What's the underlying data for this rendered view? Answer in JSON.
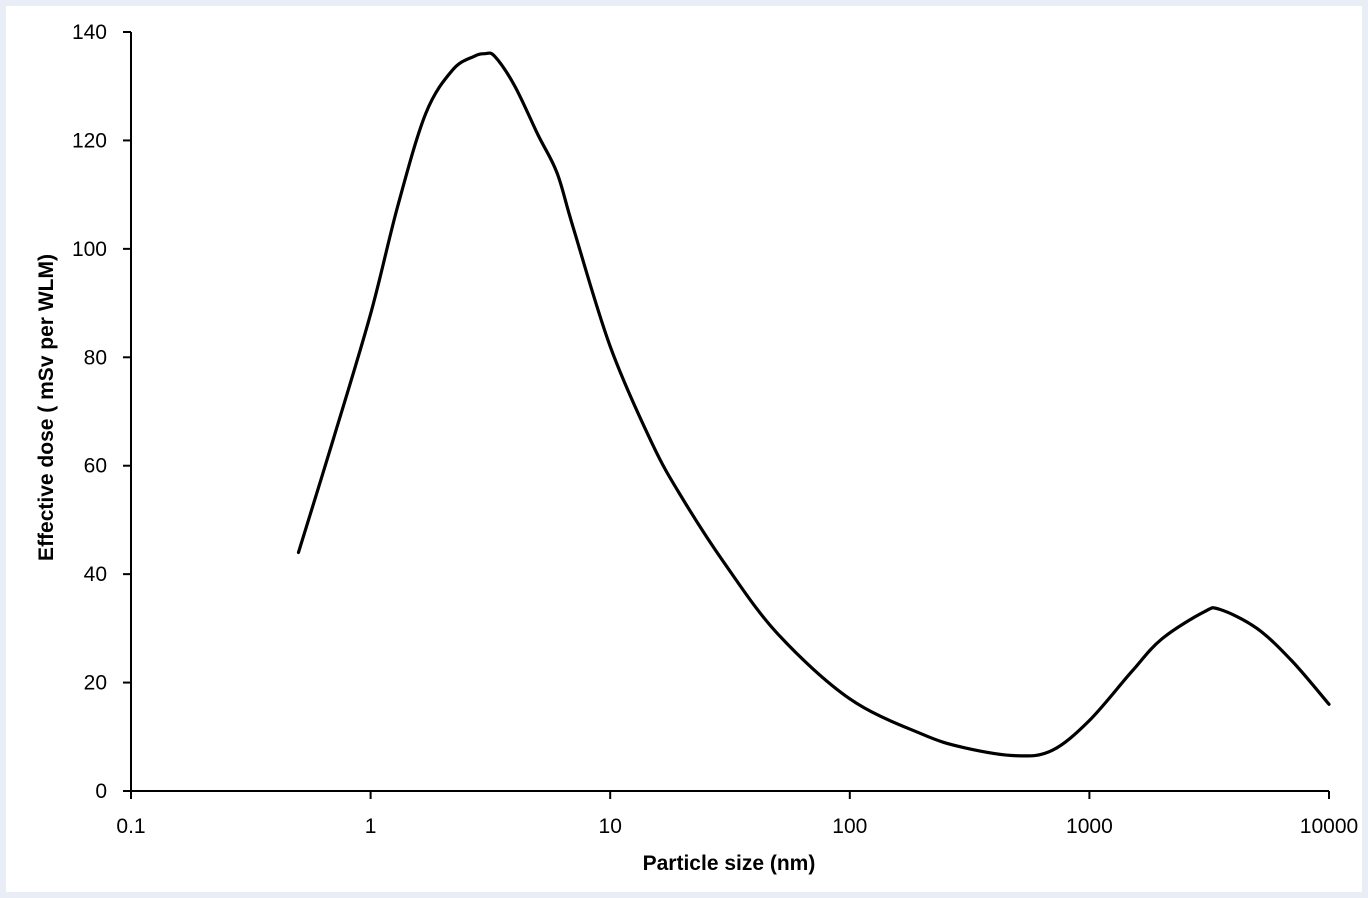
{
  "chart_data": {
    "type": "line",
    "title": "",
    "xlabel": "Particle size  (nm)",
    "ylabel": "Effective dose ( mSv per WLM)",
    "x_scale": "log",
    "xlim": [
      0.1,
      10000
    ],
    "ylim": [
      0,
      140
    ],
    "x_ticks": [
      "0.1",
      "1",
      "10",
      "100",
      "1000",
      "10000"
    ],
    "y_ticks": [
      "0",
      "20",
      "40",
      "60",
      "80",
      "100",
      "120",
      "140"
    ],
    "grid": false,
    "legend": "none",
    "line_color": "#000000",
    "series": [
      {
        "x": [
          0.5,
          0.7,
          1.0,
          1.3,
          1.7,
          2.2,
          2.7,
          3.0,
          3.3,
          4.0,
          5.0,
          6.0,
          7.0,
          10,
          15,
          20,
          30,
          50,
          100,
          200,
          300,
          500,
          700,
          1000,
          1500,
          2000,
          3000,
          3500,
          5000,
          7000,
          10000
        ],
        "y": [
          44,
          65,
          88,
          108,
          125,
          133,
          135.5,
          136,
          135.5,
          130,
          121,
          114,
          104,
          82,
          64,
          54,
          42,
          29,
          17,
          10.5,
          8,
          6.5,
          7.5,
          13,
          22,
          28,
          33,
          33.5,
          30,
          24,
          16
        ]
      }
    ]
  }
}
